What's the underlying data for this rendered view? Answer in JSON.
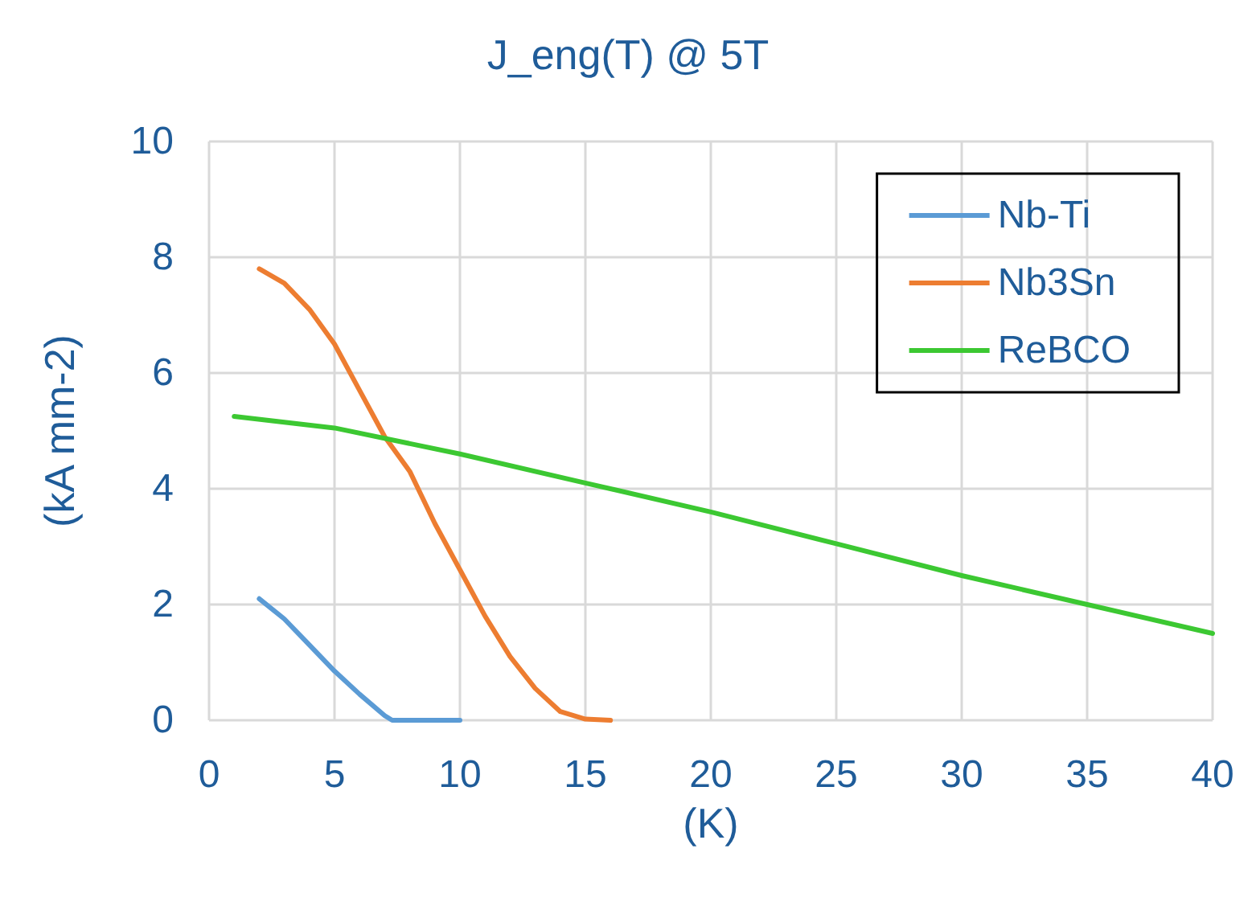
{
  "chart_data": {
    "type": "line",
    "title": "J_eng(T) @ 5T",
    "xlabel": "(K)",
    "ylabel": "(kA mm-2)",
    "xlim": [
      0,
      40
    ],
    "xticks": [
      0,
      5,
      10,
      15,
      20,
      25,
      30,
      35,
      40
    ],
    "ylim": [
      0,
      10
    ],
    "yticks": [
      0,
      2,
      4,
      6,
      8,
      10
    ],
    "grid": true,
    "legend": "top right",
    "marker": "none",
    "line_style": "solid",
    "series": [
      {
        "name": "Nb-Ti",
        "color": "#5b9bd5",
        "x": [
          2,
          3,
          4,
          5,
          6,
          7,
          7.3,
          10
        ],
        "values": [
          2.1,
          1.75,
          1.3,
          0.85,
          0.45,
          0.08,
          0,
          0
        ]
      },
      {
        "name": "Nb3Sn",
        "color": "#ed7d31",
        "x": [
          2,
          3,
          4,
          5,
          6,
          7,
          8,
          9,
          10,
          11,
          12,
          13,
          14,
          15,
          16
        ],
        "values": [
          7.8,
          7.55,
          7.1,
          6.5,
          5.7,
          4.9,
          4.3,
          3.4,
          2.6,
          1.8,
          1.1,
          0.55,
          0.15,
          0.02,
          0
        ]
      },
      {
        "name": "ReBCO",
        "color": "#3cc832",
        "x": [
          1,
          5,
          10,
          15,
          20,
          25,
          30,
          35,
          40
        ],
        "values": [
          5.25,
          5.05,
          4.6,
          4.1,
          3.6,
          3.05,
          2.5,
          2.0,
          1.5
        ]
      }
    ]
  }
}
